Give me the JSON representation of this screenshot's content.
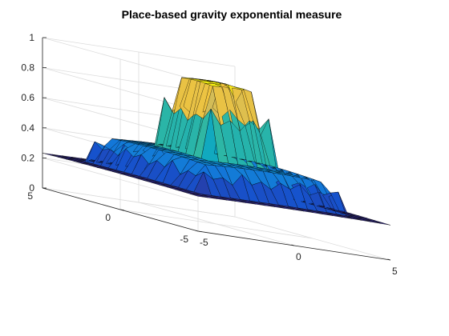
{
  "chart_data": {
    "type": "surface",
    "title": "Place-based gravity exponential measure",
    "xlabel": "",
    "ylabel": "",
    "zlabel": "",
    "xlim": [
      -5,
      5
    ],
    "ylim": [
      -5,
      5
    ],
    "zlim": [
      0,
      1
    ],
    "x_ticks": [
      "-5",
      "0",
      "5"
    ],
    "y_ticks": [
      "-5",
      "0",
      "5"
    ],
    "z_ticks": [
      "0",
      "0.2",
      "0.4",
      "0.6",
      "0.8",
      "1"
    ],
    "grid": true,
    "colormap": "parula",
    "x": [
      -5,
      -4.5,
      -4,
      -3.5,
      -3,
      -2.5,
      -2,
      -1.5,
      -1,
      -0.5,
      0,
      0.5,
      1,
      1.5,
      2,
      2.5,
      3,
      3.5,
      4,
      4.5,
      5
    ],
    "y": [
      -5,
      -4.5,
      -4,
      -3.5,
      -3,
      -2.5,
      -2,
      -1.5,
      -1,
      -0.5,
      0,
      0.5,
      1,
      1.5,
      2,
      2.5,
      3,
      3.5,
      4,
      4.5,
      5
    ],
    "z": [
      [
        0.232,
        0.233,
        0.234,
        0.235,
        0.236,
        0.236,
        0.237,
        0.237,
        0.238,
        0.238,
        0.238,
        0.238,
        0.238,
        0.237,
        0.237,
        0.236,
        0.236,
        0.235,
        0.234,
        0.233,
        0.232
      ],
      [
        0.233,
        0.234,
        0.235,
        0.236,
        0.237,
        0.238,
        0.238,
        0.239,
        0.239,
        0.239,
        0.239,
        0.239,
        0.239,
        0.239,
        0.238,
        0.238,
        0.237,
        0.236,
        0.235,
        0.234,
        0.233
      ],
      [
        0.234,
        0.235,
        0.236,
        0.237,
        0.238,
        0.239,
        0.239,
        0.24,
        0.24,
        0.241,
        0.241,
        0.241,
        0.24,
        0.24,
        0.239,
        0.239,
        0.238,
        0.237,
        0.236,
        0.235,
        0.234
      ],
      [
        0.235,
        0.236,
        0.237,
        0.38,
        0.34,
        0.36,
        0.32,
        0.4,
        0.34,
        0.37,
        0.33,
        0.38,
        0.35,
        0.39,
        0.33,
        0.36,
        0.34,
        0.38,
        0.237,
        0.236,
        0.235
      ],
      [
        0.236,
        0.237,
        0.238,
        0.34,
        0.423,
        0.427,
        0.43,
        0.433,
        0.435,
        0.436,
        0.437,
        0.436,
        0.435,
        0.433,
        0.43,
        0.427,
        0.423,
        0.36,
        0.238,
        0.237,
        0.236
      ],
      [
        0.236,
        0.238,
        0.239,
        0.36,
        0.427,
        0.431,
        0.434,
        0.437,
        0.439,
        0.44,
        0.441,
        0.44,
        0.439,
        0.437,
        0.434,
        0.431,
        0.427,
        0.33,
        0.239,
        0.238,
        0.236
      ],
      [
        0.237,
        0.238,
        0.239,
        0.32,
        0.43,
        0.434,
        0.437,
        0.44,
        0.442,
        0.443,
        0.444,
        0.443,
        0.442,
        0.44,
        0.437,
        0.434,
        0.43,
        0.39,
        0.239,
        0.238,
        0.237
      ],
      [
        0.237,
        0.239,
        0.24,
        0.4,
        0.433,
        0.437,
        0.44,
        0.78,
        0.68,
        0.72,
        0.66,
        0.74,
        0.69,
        0.77,
        0.44,
        0.437,
        0.433,
        0.35,
        0.24,
        0.239,
        0.237
      ],
      [
        0.238,
        0.239,
        0.24,
        0.34,
        0.435,
        0.439,
        0.442,
        0.7,
        0.926,
        0.931,
        0.933,
        0.931,
        0.926,
        0.65,
        0.442,
        0.439,
        0.435,
        0.37,
        0.24,
        0.239,
        0.238
      ],
      [
        0.238,
        0.239,
        0.241,
        0.37,
        0.436,
        0.44,
        0.443,
        0.72,
        0.931,
        0.937,
        0.94,
        0.937,
        0.931,
        0.73,
        0.443,
        0.44,
        0.436,
        0.34,
        0.241,
        0.239,
        0.238
      ],
      [
        0.238,
        0.239,
        0.241,
        0.33,
        0.437,
        0.441,
        0.444,
        0.66,
        0.933,
        0.94,
        0.945,
        0.94,
        0.83,
        0.68,
        0.444,
        0.441,
        0.437,
        0.38,
        0.241,
        0.239,
        0.238
      ],
      [
        0.238,
        0.239,
        0.241,
        0.38,
        0.436,
        0.44,
        0.443,
        0.74,
        0.931,
        0.937,
        0.94,
        0.937,
        0.931,
        0.71,
        0.443,
        0.44,
        0.436,
        0.33,
        0.241,
        0.239,
        0.238
      ],
      [
        0.238,
        0.239,
        0.24,
        0.35,
        0.435,
        0.439,
        0.442,
        0.69,
        0.926,
        0.931,
        0.933,
        0.931,
        0.926,
        0.76,
        0.442,
        0.439,
        0.435,
        0.39,
        0.24,
        0.239,
        0.238
      ],
      [
        0.237,
        0.239,
        0.24,
        0.39,
        0.433,
        0.437,
        0.44,
        0.77,
        0.67,
        0.73,
        0.68,
        0.71,
        0.75,
        0.7,
        0.44,
        0.437,
        0.433,
        0.34,
        0.24,
        0.239,
        0.237
      ],
      [
        0.237,
        0.238,
        0.239,
        0.33,
        0.43,
        0.434,
        0.437,
        0.44,
        0.442,
        0.443,
        0.444,
        0.443,
        0.442,
        0.44,
        0.437,
        0.434,
        0.43,
        0.37,
        0.239,
        0.238,
        0.237
      ],
      [
        0.236,
        0.238,
        0.239,
        0.36,
        0.427,
        0.431,
        0.434,
        0.437,
        0.439,
        0.44,
        0.441,
        0.44,
        0.439,
        0.437,
        0.434,
        0.431,
        0.427,
        0.33,
        0.239,
        0.238,
        0.236
      ],
      [
        0.236,
        0.237,
        0.238,
        0.34,
        0.423,
        0.427,
        0.43,
        0.433,
        0.435,
        0.436,
        0.437,
        0.436,
        0.435,
        0.433,
        0.43,
        0.427,
        0.423,
        0.38,
        0.238,
        0.237,
        0.236
      ],
      [
        0.235,
        0.236,
        0.237,
        0.38,
        0.36,
        0.33,
        0.39,
        0.35,
        0.37,
        0.34,
        0.38,
        0.33,
        0.39,
        0.34,
        0.37,
        0.33,
        0.38,
        0.36,
        0.237,
        0.236,
        0.235
      ],
      [
        0.234,
        0.235,
        0.236,
        0.237,
        0.238,
        0.239,
        0.239,
        0.24,
        0.24,
        0.241,
        0.241,
        0.241,
        0.24,
        0.24,
        0.239,
        0.239,
        0.238,
        0.237,
        0.236,
        0.235,
        0.234
      ],
      [
        0.233,
        0.234,
        0.235,
        0.236,
        0.237,
        0.238,
        0.238,
        0.239,
        0.239,
        0.239,
        0.239,
        0.239,
        0.239,
        0.239,
        0.238,
        0.238,
        0.237,
        0.236,
        0.235,
        0.234,
        0.233
      ],
      [
        0.232,
        0.233,
        0.234,
        0.235,
        0.236,
        0.236,
        0.237,
        0.237,
        0.238,
        0.238,
        0.238,
        0.238,
        0.238,
        0.237,
        0.237,
        0.236,
        0.236,
        0.235,
        0.234,
        0.233,
        0.232
      ]
    ],
    "colors": {
      "axis": "#262626",
      "grid": "#dcdcdc",
      "edge": "#000000",
      "parula": [
        "#352a87",
        "#0f5cdd",
        "#1481d6",
        "#06a4ca",
        "#2eb7a4",
        "#87bf77",
        "#d1bb59",
        "#fec832",
        "#f9fb0e"
      ]
    }
  }
}
